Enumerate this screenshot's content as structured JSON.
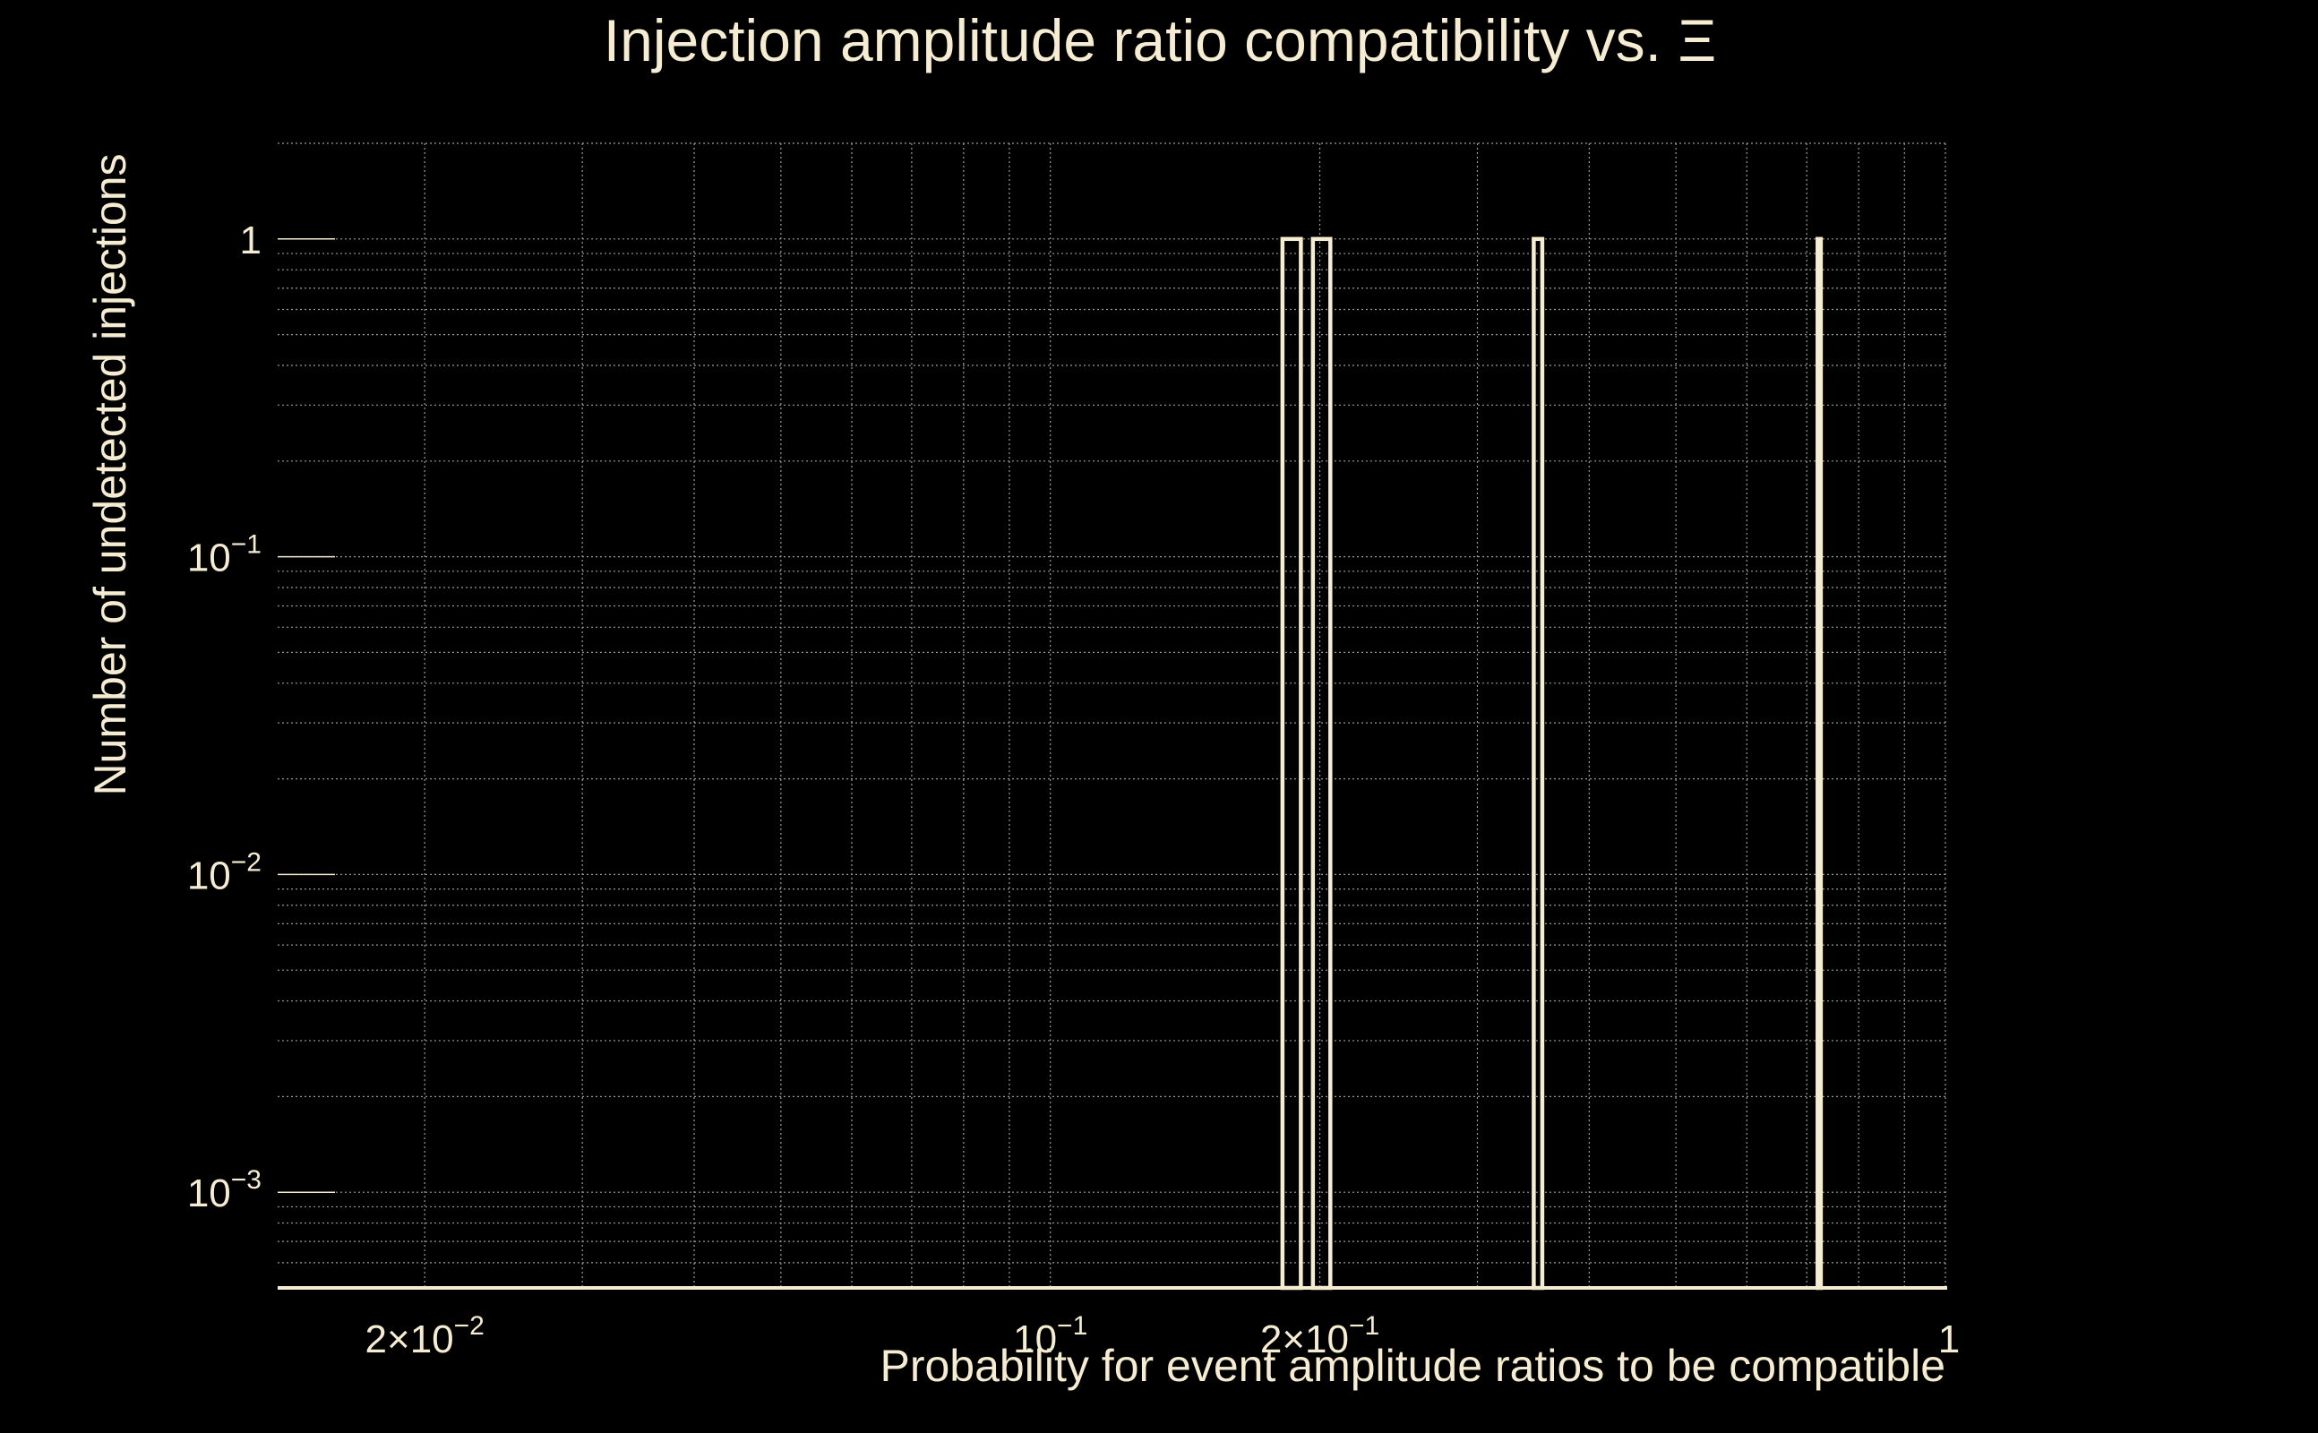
{
  "chart_data": {
    "type": "bar",
    "title": "Injection amplitude ratio compatibility vs.  Ξ",
    "xlabel": "Probability for event amplitude ratios to be compatible",
    "ylabel": "Number of undetected injections",
    "x_scale": "log",
    "y_scale": "log",
    "xlim": [
      0.0137,
      1.0
    ],
    "ylim": [
      0.0005,
      2.0
    ],
    "grid": true,
    "x_ticks": [
      {
        "value": 0.02,
        "base": "2×10",
        "exp": "−2"
      },
      {
        "value": 0.1,
        "base": "10",
        "exp": "−1"
      },
      {
        "value": 0.2,
        "base": "2×10",
        "exp": "−1"
      },
      {
        "value": 1.0,
        "base": "1",
        "exp": ""
      }
    ],
    "y_ticks": [
      {
        "value": 1.0,
        "base": "1",
        "exp": ""
      },
      {
        "value": 0.1,
        "base": "10",
        "exp": "−1"
      },
      {
        "value": 0.01,
        "base": "10",
        "exp": "−2"
      },
      {
        "value": 0.001,
        "base": "10",
        "exp": "−3"
      }
    ],
    "bars": [
      {
        "x_start": 0.1817,
        "x_end": 0.1905,
        "value": 1
      },
      {
        "x_start": 0.1965,
        "x_end": 0.2055,
        "value": 1
      },
      {
        "x_start": 0.3468,
        "x_end": 0.3545,
        "value": 1
      },
      {
        "x_start": 0.7198,
        "x_end": 0.7258,
        "value": 1
      }
    ]
  },
  "colors": {
    "background": "#000000",
    "foreground": "#f5ecd2",
    "grid": "#9a9a9a"
  }
}
